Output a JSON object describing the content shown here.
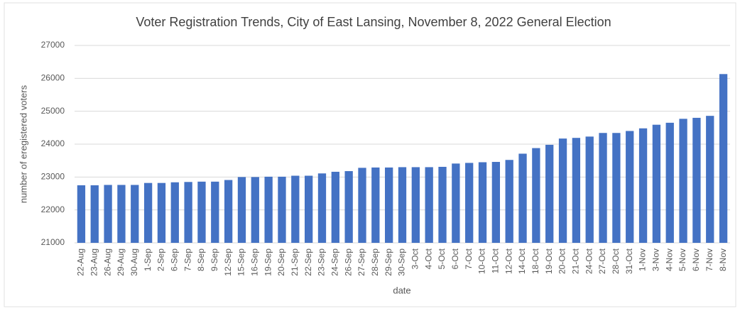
{
  "chart_data": {
    "type": "bar",
    "title": "Voter Registration Trends, City of East Lansing, November 8, 2022 General Election",
    "x_label": "date",
    "y_label": "number of eregistered voters",
    "categories": [
      "22-Aug",
      "23-Aug",
      "26-Aug",
      "29-Aug",
      "30-Aug",
      "1-Sep",
      "2-Sep",
      "6-Sep",
      "7-Sep",
      "8-Sep",
      "9-Sep",
      "12-Sep",
      "15-Sep",
      "16-Sep",
      "19-Sep",
      "20-Sep",
      "21-Sep",
      "22-Sep",
      "23-Sep",
      "24-Sep",
      "26-Sep",
      "27-Sep",
      "28-Sep",
      "29-Sep",
      "30-Sep",
      "3-Oct",
      "4-Oct",
      "5-Oct",
      "6-Oct",
      "7-Oct",
      "10-Oct",
      "11-Oct",
      "12-Oct",
      "14-Oct",
      "18-Oct",
      "19-Oct",
      "20-Oct",
      "21-Oct",
      "24-Oct",
      "27-Oct",
      "28-Oct",
      "31-Oct",
      "1-Nov",
      "3-Nov",
      "4-Nov",
      "5-Nov",
      "6-Nov",
      "7-Nov",
      "8-Nov"
    ],
    "values": [
      22750,
      22750,
      22760,
      22760,
      22760,
      22820,
      22820,
      22840,
      22850,
      22860,
      22860,
      22910,
      23000,
      23000,
      23010,
      23010,
      23040,
      23040,
      23110,
      23160,
      23180,
      23280,
      23290,
      23290,
      23300,
      23300,
      23300,
      23310,
      23410,
      23430,
      23450,
      23460,
      23520,
      23710,
      23880,
      23980,
      24170,
      24190,
      24230,
      24340,
      24340,
      24400,
      24480,
      24590,
      24650,
      24770,
      24800,
      24860,
      26130
    ],
    "color": "#4472c4",
    "ylim": [
      21000,
      27000
    ],
    "yticks": [
      21000,
      22000,
      23000,
      24000,
      25000,
      26000,
      27000
    ],
    "grid": true
  }
}
